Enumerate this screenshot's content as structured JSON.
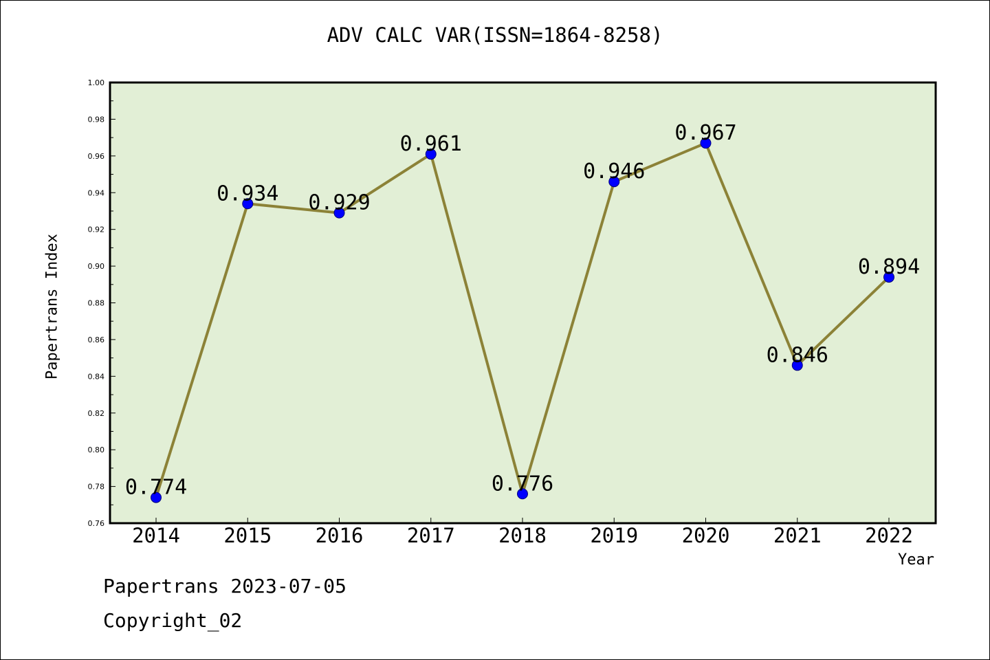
{
  "chart_data": {
    "type": "line",
    "title": "ADV CALC VAR(ISSN=1864-8258)",
    "xlabel": "Year",
    "ylabel": "Papertrans Index",
    "categories": [
      "2014",
      "2015",
      "2016",
      "2017",
      "2018",
      "2019",
      "2020",
      "2021",
      "2022"
    ],
    "series": [
      {
        "values": [
          0.774,
          0.934,
          0.929,
          0.961,
          0.776,
          0.946,
          0.967,
          0.846,
          0.894
        ]
      }
    ],
    "data_labels": [
      "0.774",
      "0.934",
      "0.929",
      "0.961",
      "0.776",
      "0.946",
      "0.967",
      "0.846",
      "0.894"
    ],
    "ylim": [
      0.76,
      1.0
    ],
    "yticks": [
      "0.76",
      "0.78",
      "0.80",
      "0.82",
      "0.84",
      "0.86",
      "0.88",
      "0.90",
      "0.92",
      "0.94",
      "0.96",
      "0.98",
      "1.00"
    ],
    "grid": false,
    "legend": "none",
    "colors": {
      "plot_background": "#e2efd6",
      "line": "#8c8237",
      "marker": "#0000ff"
    }
  },
  "footer": {
    "line1": "Papertrans 2023-07-05",
    "line2": "Copyright_02"
  }
}
